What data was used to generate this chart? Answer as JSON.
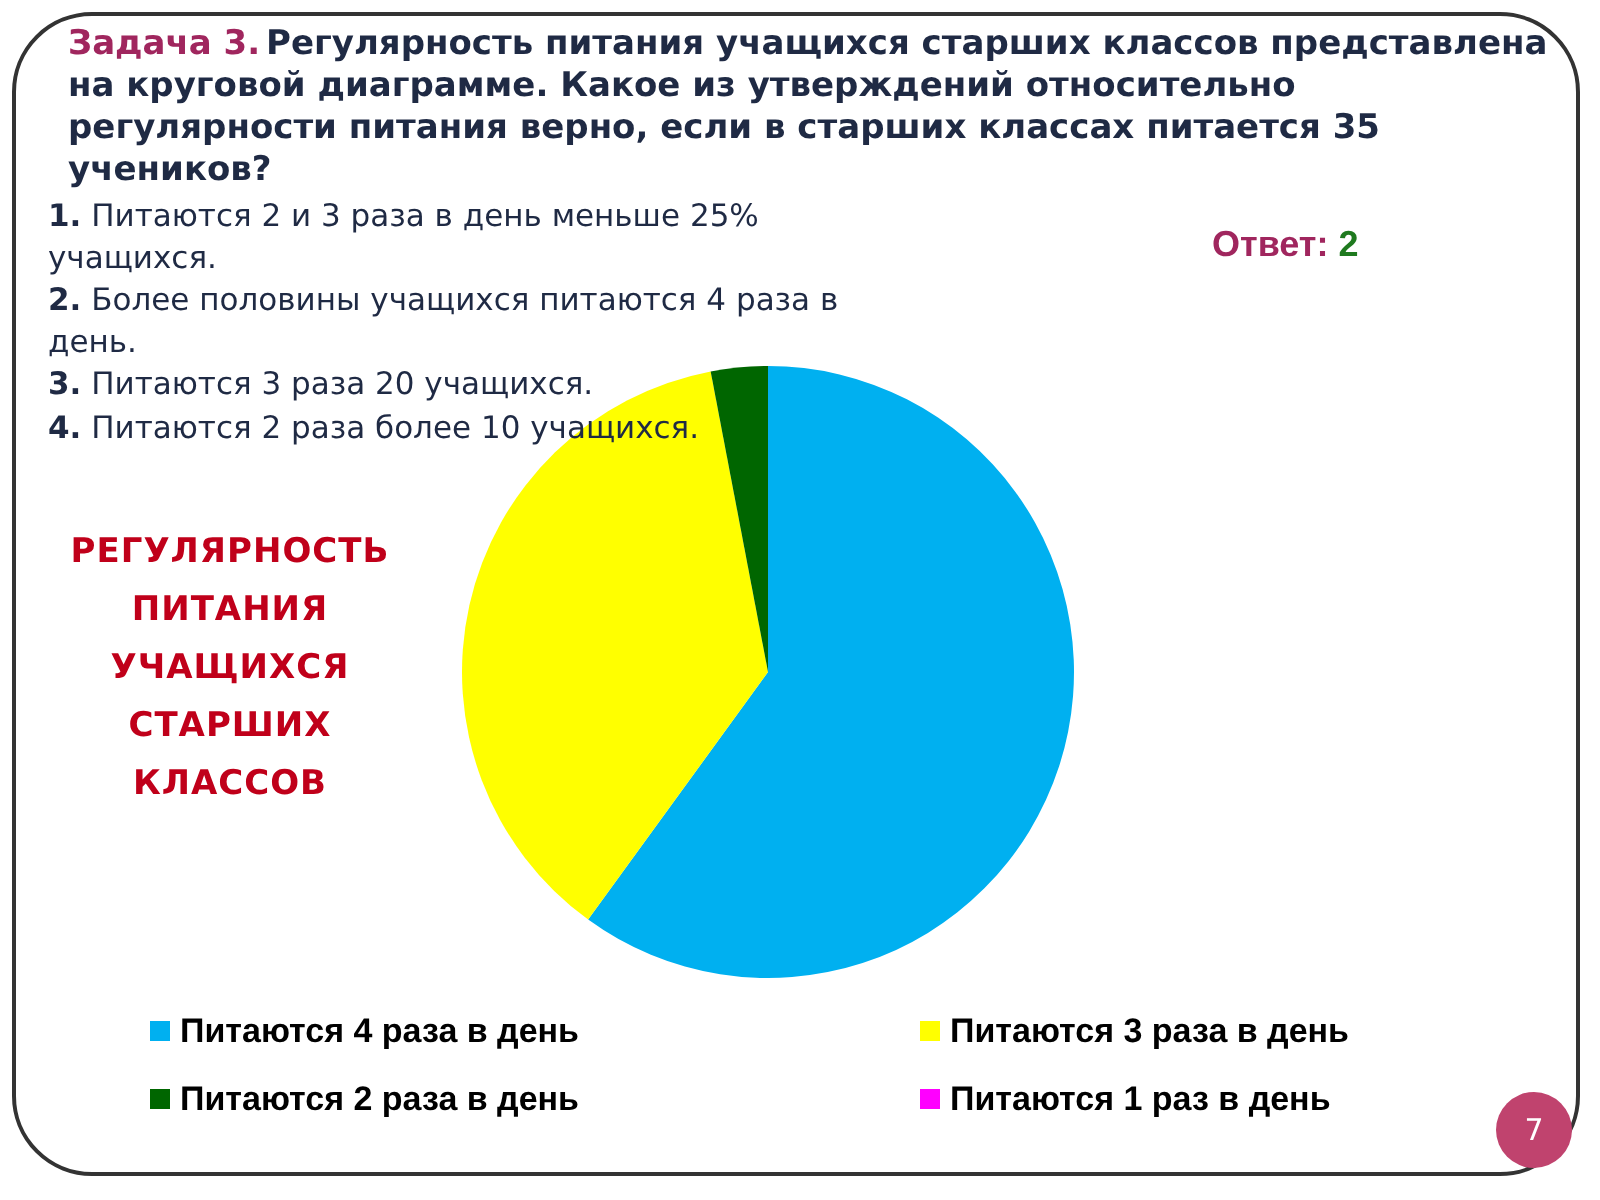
{
  "chart_data": {
    "type": "pie",
    "title": "РЕГУЛЯРНОСТЬ ПИТАНИЯ УЧАЩИХСЯ СТАРШИХ КЛАССОВ",
    "categories": [
      "Питаются 4 раза в день",
      "Питаются 3 раза в день",
      "Питаются 2 раза в день",
      "Питаются 1 раз в день"
    ],
    "values": [
      60,
      37,
      3,
      0
    ],
    "colors": [
      "#00b0f0",
      "#ffff00",
      "#006600",
      "#ff00ff"
    ],
    "legend": "bottom",
    "annotations": [
      "Задача 3.",
      "Регулярность питания учащихся старших классов представлена на круговой диаграмме. Какое из утверждений относительно регулярности питания верно, если в старших классах питается 35 учеников?",
      "1. Питаются 2 и 3 раза в день меньше 25% учащихся.",
      "2. Более половины учащихся питаются 4 раза в день.",
      "3. Питаются 3 раза 20 учащихся.",
      "4. Питаются 2 раза более 10 учащихся.",
      "Ответ: 2",
      "7"
    ]
  }
}
